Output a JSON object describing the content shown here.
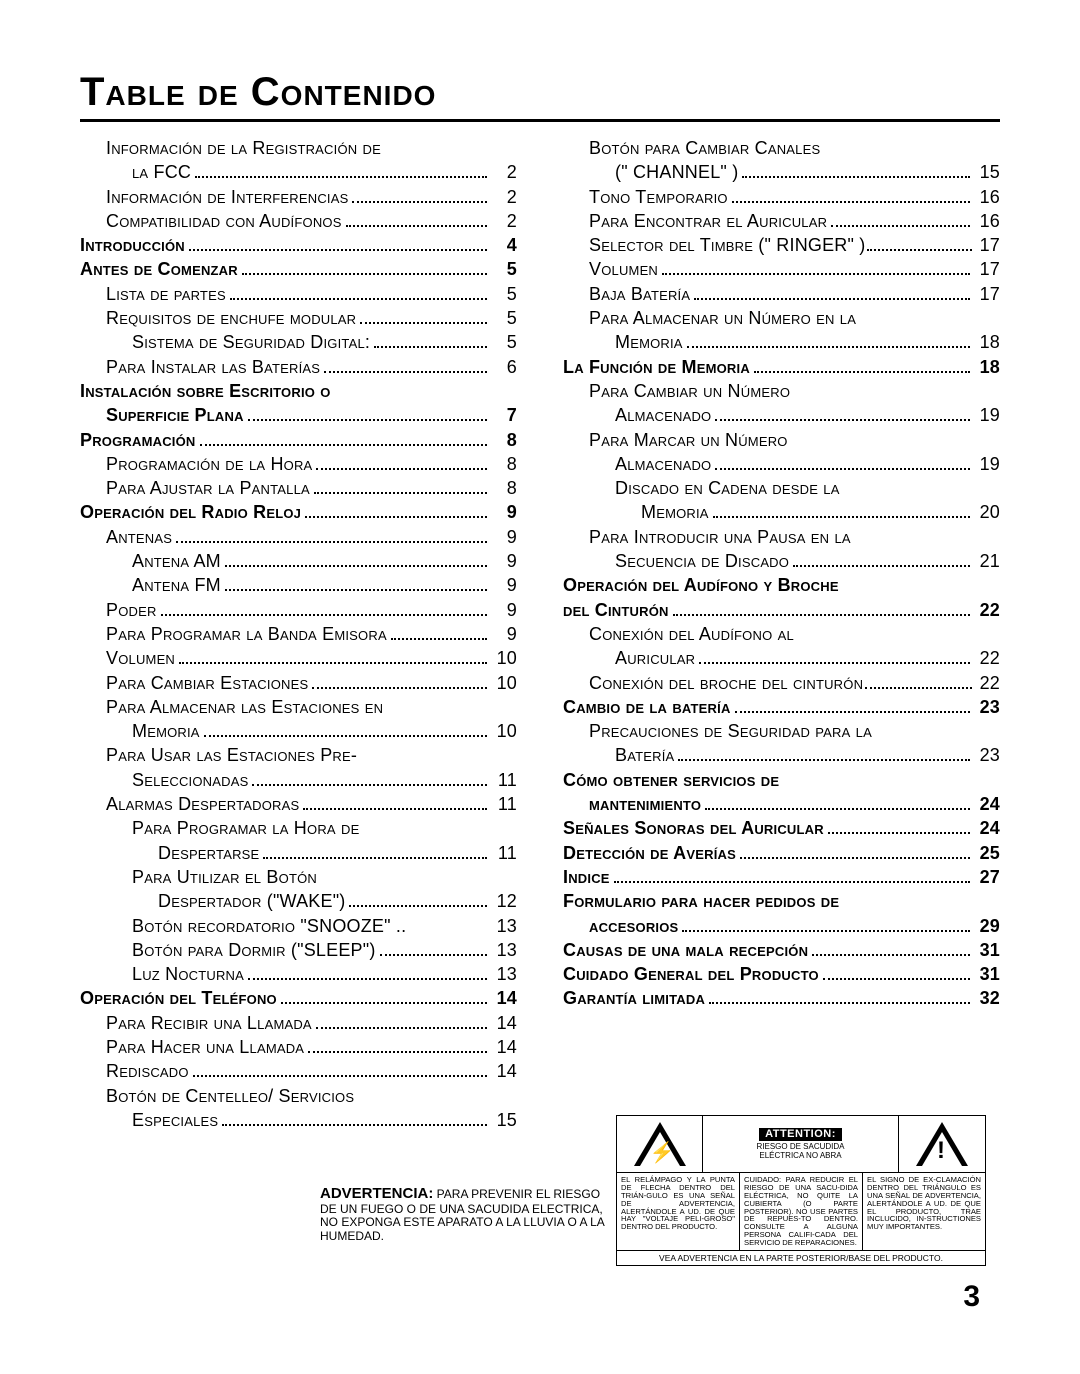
{
  "title": "Table de Contenido",
  "page_number": "3",
  "colors": {
    "text": "#000000",
    "bg": "#ffffff"
  },
  "typography": {
    "body_pt": 18,
    "title_pt": 40,
    "small_caps": true
  },
  "left": [
    {
      "label": "Información de la Registración de",
      "indent": 1,
      "bold": false,
      "cont": true
    },
    {
      "label": "la FCC",
      "page": "2",
      "indent": 2,
      "bold": false
    },
    {
      "label": "Información de Interferencias",
      "page": "2",
      "indent": 1,
      "bold": false
    },
    {
      "label": "Compatibilidad con Audífonos",
      "page": "2",
      "indent": 1,
      "bold": false
    },
    {
      "label": "Introducción",
      "page": "4",
      "indent": 0,
      "bold": true
    },
    {
      "label": "Antes de Comenzar",
      "page": "5",
      "indent": 0,
      "bold": true
    },
    {
      "label": "Lista de partes",
      "page": "5",
      "indent": 1,
      "bold": false
    },
    {
      "label": "Requisitos de enchufe modular",
      "page": "5",
      "indent": 1,
      "bold": false
    },
    {
      "label": "Sistema de Seguridad Digital:",
      "page": "5",
      "indent": 2,
      "bold": false
    },
    {
      "label": "Para Instalar las Baterías",
      "page": "6",
      "indent": 1,
      "bold": false
    },
    {
      "label": "Instalación sobre Escritorio o",
      "indent": 0,
      "bold": true,
      "cont": true
    },
    {
      "label": "Superficie Plana",
      "page": "7",
      "indent": 1,
      "bold": true
    },
    {
      "label": "Programación",
      "page": "8",
      "indent": 0,
      "bold": true
    },
    {
      "label": "Programación de la Hora",
      "page": "8",
      "indent": 1,
      "bold": false
    },
    {
      "label": "Para Ajustar la Pantalla",
      "page": "8",
      "indent": 1,
      "bold": false
    },
    {
      "label": "Operación del Radio Reloj",
      "page": "9",
      "indent": 0,
      "bold": true
    },
    {
      "label": "Antenas",
      "page": "9",
      "indent": 1,
      "bold": false
    },
    {
      "label": "Antena AM",
      "page": "9",
      "indent": 2,
      "bold": false
    },
    {
      "label": "Antena FM",
      "page": "9",
      "indent": 2,
      "bold": false
    },
    {
      "label": "Poder",
      "page": "9",
      "indent": 1,
      "bold": false
    },
    {
      "label": "Para Programar la Banda Emisora",
      "page": "9",
      "indent": 1,
      "bold": false
    },
    {
      "label": "Volumen",
      "page": "10",
      "indent": 1,
      "bold": false
    },
    {
      "label": "Para Cambiar Estaciones",
      "page": "10",
      "indent": 1,
      "bold": false
    },
    {
      "label": "Para Almacenar las Estaciones en",
      "indent": 1,
      "bold": false,
      "cont": true
    },
    {
      "label": "Memoria",
      "page": "10",
      "indent": 2,
      "bold": false
    },
    {
      "label": "Para Usar las Estaciones Pre-",
      "indent": 1,
      "bold": false,
      "cont": true
    },
    {
      "label": "Seleccionadas",
      "page": "11",
      "indent": 2,
      "bold": false
    },
    {
      "label": "Alarmas Despertadoras",
      "page": "11",
      "indent": 1,
      "bold": false
    },
    {
      "label": "Para Programar la Hora de",
      "indent": 2,
      "bold": false,
      "cont": true
    },
    {
      "label": "Despertarse",
      "page": "11",
      "indent": 3,
      "bold": false
    },
    {
      "label": "Para Utilizar el Botón",
      "indent": 2,
      "bold": false,
      "cont": true
    },
    {
      "label": "Despertador (\"WAKE\")",
      "page": "12",
      "indent": 3,
      "bold": false
    },
    {
      "label": "Botón recordatorio \"SNOOZE\" ..",
      "page": "13",
      "indent": 2,
      "bold": false,
      "no_leader": true
    },
    {
      "label": "Botón para Dormir (\"SLEEP\")",
      "page": "13",
      "indent": 2,
      "bold": false
    },
    {
      "label": "Luz Nocturna",
      "page": "13",
      "indent": 2,
      "bold": false
    },
    {
      "label": "Operación del Teléfono",
      "page": "14",
      "indent": 0,
      "bold": true
    },
    {
      "label": "Para Recibir una Llamada",
      "page": "14",
      "indent": 1,
      "bold": false
    },
    {
      "label": "Para Hacer una Llamada",
      "page": "14",
      "indent": 1,
      "bold": false
    },
    {
      "label": "Rediscado",
      "page": "14",
      "indent": 1,
      "bold": false
    },
    {
      "label": "Botón de Centelleo/ Servicios",
      "indent": 1,
      "bold": false,
      "cont": true
    },
    {
      "label": "Especiales",
      "page": "15",
      "indent": 2,
      "bold": false
    }
  ],
  "right": [
    {
      "label": "Botón para Cambiar Canales",
      "indent": 1,
      "bold": false,
      "cont": true
    },
    {
      "label": "(\" CHANNEL\" )",
      "page": "15",
      "indent": 2,
      "bold": false
    },
    {
      "label": "Tono Temporario",
      "page": "16",
      "indent": 1,
      "bold": false
    },
    {
      "label": "Para Encontrar el Auricular",
      "page": "16",
      "indent": 1,
      "bold": false
    },
    {
      "label": "Selector del Timbre (\" RINGER\" )",
      "page": "17",
      "indent": 1,
      "bold": false,
      "tight": true
    },
    {
      "label": "Volumen",
      "page": "17",
      "indent": 1,
      "bold": false
    },
    {
      "label": "Baja Batería",
      "page": "17",
      "indent": 1,
      "bold": false
    },
    {
      "label": "Para Almacenar un Número en la",
      "indent": 1,
      "bold": false,
      "cont": true
    },
    {
      "label": "Memoria",
      "page": "18",
      "indent": 2,
      "bold": false
    },
    {
      "label": "La Función de Memoria",
      "page": "18",
      "indent": 0,
      "bold": true
    },
    {
      "label": "Para Cambiar un Número",
      "indent": 1,
      "bold": false,
      "cont": true
    },
    {
      "label": "Almacenado",
      "page": "19",
      "indent": 2,
      "bold": false
    },
    {
      "label": "Para Marcar un Número",
      "indent": 1,
      "bold": false,
      "cont": true
    },
    {
      "label": "Almacenado",
      "page": "19",
      "indent": 2,
      "bold": false
    },
    {
      "label": "Discado en Cadena desde la",
      "indent": 2,
      "bold": false,
      "cont": true
    },
    {
      "label": "Memoria",
      "page": "20",
      "indent": 3,
      "bold": false
    },
    {
      "label": "Para Introducir una Pausa en la",
      "indent": 1,
      "bold": false,
      "cont": true
    },
    {
      "label": "Secuencia de Discado",
      "page": "21",
      "indent": 2,
      "bold": false
    },
    {
      "label": "Operación del Audífono y Broche",
      "indent": 0,
      "bold": true,
      "cont": true
    },
    {
      "label": "del Cinturón",
      "page": "22",
      "indent": 0,
      "bold": true
    },
    {
      "label": "Conexión del Audífono al",
      "indent": 1,
      "bold": false,
      "cont": true
    },
    {
      "label": "Auricular",
      "page": "22",
      "indent": 2,
      "bold": false
    },
    {
      "label": "Conexión del broche del cinturón",
      "page": "22",
      "indent": 1,
      "bold": false,
      "tight": true
    },
    {
      "label": "Cambio de la batería",
      "page": "23",
      "indent": 0,
      "bold": true
    },
    {
      "label": "Precauciones de Seguridad para la",
      "indent": 1,
      "bold": false,
      "cont": true
    },
    {
      "label": "Batería",
      "page": "23",
      "indent": 2,
      "bold": false
    },
    {
      "label": "Cómo obtener servicios de",
      "indent": 0,
      "bold": true,
      "cont": true
    },
    {
      "label": "mantenimiento",
      "page": "24",
      "indent": 1,
      "bold": true
    },
    {
      "label": "Señales Sonoras del Auricular",
      "page": "24",
      "indent": 0,
      "bold": true
    },
    {
      "label": "Detección de Averías",
      "page": "25",
      "indent": 0,
      "bold": true
    },
    {
      "label": "Indice",
      "page": "27",
      "indent": 0,
      "bold": true
    },
    {
      "label": "Formulario para hacer pedidos de",
      "indent": 0,
      "bold": true,
      "cont": true
    },
    {
      "label": "accesorios",
      "page": "29",
      "indent": 1,
      "bold": true
    },
    {
      "label": "Causas de una mala recepción",
      "page": "31",
      "indent": 0,
      "bold": true
    },
    {
      "label": "Cuidado General del Producto",
      "page": "31",
      "indent": 0,
      "bold": true
    },
    {
      "label": "Garantía limitada",
      "page": "32",
      "indent": 0,
      "bold": true
    }
  ],
  "advertencia": {
    "title": "ADVERTENCIA:",
    "body": " PARA PREVENIR EL RIESGO DE UN FUEGO O DE UNA SACUDIDA ELECTRICA, NO EXPONGA ESTE APARATO A LA LLUVIA O A LA HUMEDAD."
  },
  "warning_box": {
    "attention_title": "ATTENTION:",
    "attention_sub1": "RIESGO DE SACUDIDA",
    "attention_sub2": "ELÉCTRICA NO ABRA",
    "col1": "EL RELÁMPAGO Y LA PUNTA DE FLECHA DENTRO DEL TRIÁN-GULO ES UNA SEÑAL DE ADVERTENCIA, ALERTÁNDOLE A UD. DE QUE HAY \"VOLTAJE PELI-GROSO\" DENTRO DEL PRODUCTO.",
    "col2": "CUIDADO: PARA REDUCIR EL RIESGO DE UNA SACU-DIDA ELÉCTRICA, NO QUITE LA CUBIERTA (O PARTE POSTERIOR). NO USE PARTES DE REPUES-TO DENTRO. CONSULTE A ALGUNA PERSONA CALIFI-CADA DEL SERVICIO DE REPARACIONES.",
    "col3": "EL SIGNO DE EX-CLAMACIÓN DENTRO DEL TRIÁNGULO ES UNA SEÑAL DE ADVERTENCIA, ALERTÁNDOLE A UD. DE QUE EL PRODUCTO, TRAE INCLUCIDO, IN-STRUCTIONES MUY IMPORTANTES.",
    "footer": "VEA ADVERTENCIA EN LA PARTE POSTERIOR/BASE DEL PRODUCTO."
  }
}
